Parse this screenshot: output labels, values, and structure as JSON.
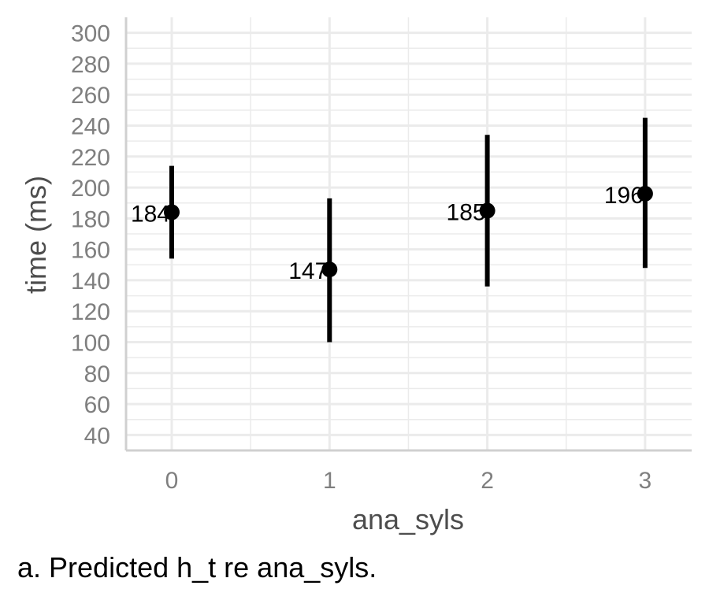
{
  "chart_data": {
    "type": "scatter",
    "subtype": "point-range",
    "xlabel": "ana_syls",
    "ylabel": "time (ms)",
    "categories": [
      "0",
      "1",
      "2",
      "3"
    ],
    "points": [
      {
        "x": "0",
        "y": 184,
        "ymin": 154,
        "ymax": 214,
        "label": "184"
      },
      {
        "x": "1",
        "y": 147,
        "ymin": 100,
        "ymax": 193,
        "label": "147"
      },
      {
        "x": "2",
        "y": 185,
        "ymin": 136,
        "ymax": 234,
        "label": "185"
      },
      {
        "x": "3",
        "y": 196,
        "ymin": 148,
        "ymax": 245,
        "label": "196"
      }
    ],
    "yticks": [
      40,
      60,
      80,
      100,
      120,
      140,
      160,
      180,
      200,
      220,
      240,
      260,
      280,
      300
    ],
    "ylim": [
      30,
      310
    ],
    "grid": true,
    "colors": {
      "points": "#000000",
      "grid": "#ebebeb",
      "axis": "#d0d0d0",
      "tick_text": "#7f7f7f",
      "axis_title": "#4d4d4d"
    }
  },
  "caption": "a. Predicted h_t re ana_syls."
}
